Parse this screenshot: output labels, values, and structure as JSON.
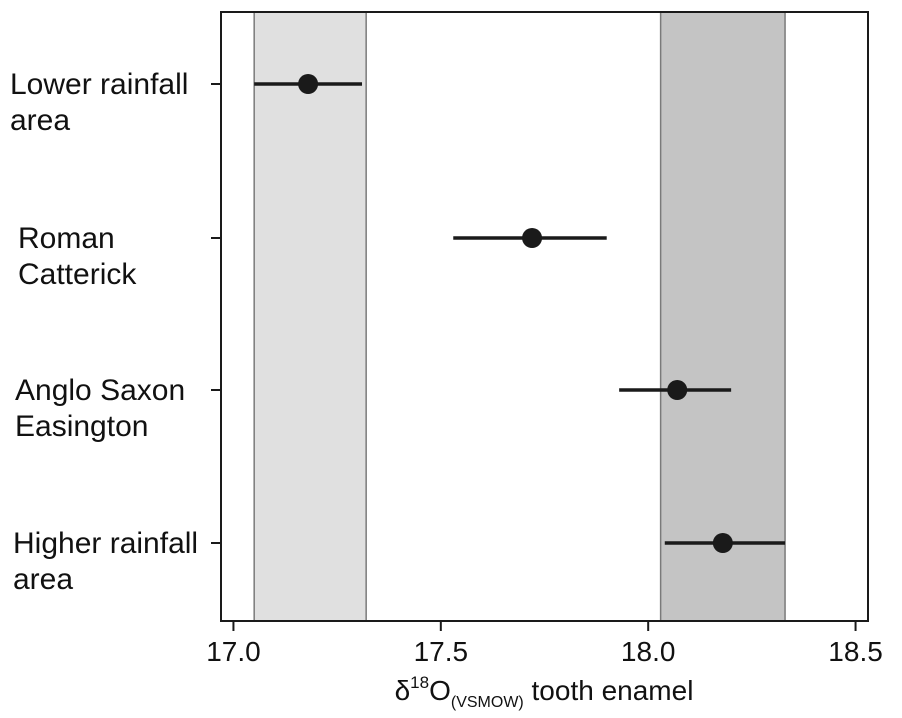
{
  "chart_data": {
    "type": "point-range",
    "xlim": [
      16.97,
      18.53
    ],
    "x_ticks": [
      "17.0",
      "17.5",
      "18.0",
      "18.5"
    ],
    "xlabel": {
      "symbol": "δ",
      "sup": "18",
      "main": "O",
      "sub": "(VSMOW)",
      "suffix": " tooth enamel"
    },
    "categories": [
      {
        "label_lines": [
          "Lower rainfall",
          "area"
        ],
        "mean": 17.18,
        "low": 17.05,
        "high": 17.31
      },
      {
        "label_lines": [
          "Roman",
          "Catterick"
        ],
        "mean": 17.72,
        "low": 17.53,
        "high": 17.9
      },
      {
        "label_lines": [
          "Anglo Saxon",
          "Easington"
        ],
        "mean": 18.07,
        "low": 17.93,
        "high": 18.2
      },
      {
        "label_lines": [
          "Higher rainfall",
          "area"
        ],
        "mean": 18.18,
        "low": 18.04,
        "high": 18.33
      }
    ],
    "bands": [
      {
        "from": 17.05,
        "to": 17.32,
        "color": "#e0e0e0"
      },
      {
        "from": 18.03,
        "to": 18.33,
        "color": "#c4c4c4"
      }
    ],
    "colors": {
      "point": "#1a1a1a",
      "errorbar": "#1a1a1a",
      "axis": "#1a1a1a",
      "band_border": "#7a7a7a"
    },
    "grid": false,
    "legend": "none"
  }
}
